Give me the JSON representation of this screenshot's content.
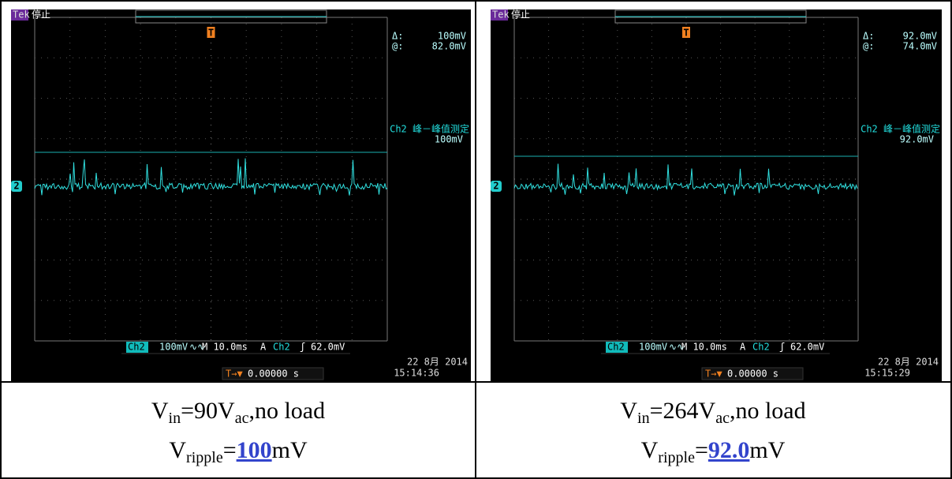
{
  "panels": [
    {
      "scope": {
        "brand": "Tek",
        "state": "停止",
        "trigger_marker": "T",
        "delta_label": "Δ:",
        "delta": "100mV",
        "at_label": "@:",
        "at": "82.0mV",
        "measure_title": "Ch2 峰－峰值测定",
        "measure_value": "100mV",
        "channel_marker": "2",
        "ch_label": "Ch2",
        "scale": "100mV",
        "coupling": "∿∿",
        "timebase": "M 10.0ms",
        "trig_mode": "A",
        "trig_source": "Ch2",
        "trig_slope": "ʃ",
        "trig_level": "62.0mV",
        "trig_pos_icon": "T→▼",
        "trig_pos": "0.00000 s",
        "date": "22 8月 2014",
        "time": "15:14:36"
      },
      "caption": {
        "line1": [
          "V",
          "in",
          "=90V",
          "ac",
          ",no load"
        ],
        "line2": [
          "V",
          "ripple",
          "=",
          "100",
          "mV"
        ]
      }
    },
    {
      "scope": {
        "brand": "Tek",
        "state": "停止",
        "trigger_marker": "T",
        "delta_label": "Δ:",
        "delta": "92.0mV",
        "at_label": "@:",
        "at": "74.0mV",
        "measure_title": "Ch2 峰－峰值测定",
        "measure_value": "92.0mV",
        "channel_marker": "2",
        "ch_label": "Ch2",
        "scale": "100mV",
        "coupling": "∿∿",
        "timebase": "M 10.0ms",
        "trig_mode": "A",
        "trig_source": "Ch2",
        "trig_slope": "ʃ",
        "trig_level": "62.0mV",
        "trig_pos_icon": "T→▼",
        "trig_pos": "0.00000 s",
        "date": "22 8月 2014",
        "time": "15:15:29"
      },
      "caption": {
        "line1": [
          "V",
          "in",
          "=264V",
          "ac",
          ",no load"
        ],
        "line2": [
          "V",
          "ripple",
          "=",
          "92.0",
          "mV"
        ]
      }
    }
  ]
}
